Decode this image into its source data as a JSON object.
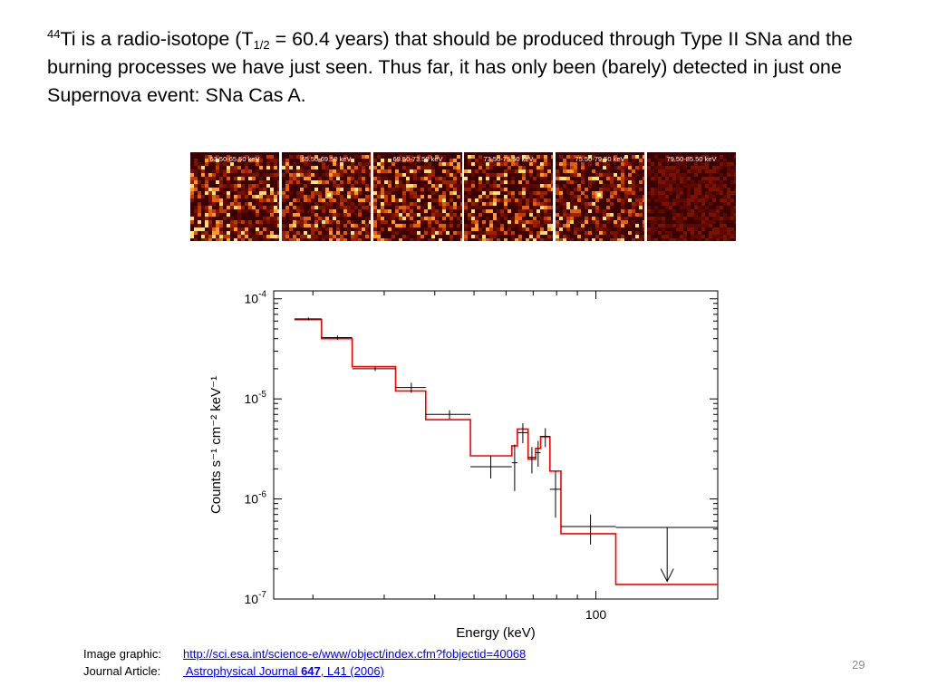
{
  "slide": {
    "para_sup": "44",
    "para_a": "Ti is a radio-isotope (T",
    "para_sub": "1/2",
    "para_b": " = 60.4 years) that should be produced through Type II SNa and the burning processes we have just seen.  Thus far, it has only been (barely) detected in just one Supernova event:  SNa Cas A."
  },
  "panels": [
    {
      "label": "63.50-65.50 keV"
    },
    {
      "label": "65.50-69.50 keV"
    },
    {
      "label": "69.50-73.50 keV"
    },
    {
      "label": "73.50-75.50 keV"
    },
    {
      "label": "75.50-79.50 keV"
    },
    {
      "label": "79.50-85.50 keV"
    }
  ],
  "colors": {
    "panel_background": "#3a0000",
    "model_line": "#ff0000",
    "data_line": "#000000",
    "page_number": "#8a8a8a",
    "link": "#0000ee"
  },
  "chart_data": {
    "type": "line",
    "xlabel": "Energy (keV)",
    "ylabel": "Counts s⁻¹ cm⁻² keV⁻¹",
    "x_scale": "log",
    "y_scale": "log",
    "xlim": [
      16,
      200
    ],
    "ylim": [
      1e-07,
      0.00012
    ],
    "y_ticks": [
      {
        "value": 0.0001,
        "label_base": "10",
        "label_exp": "-4"
      },
      {
        "value": 1e-05,
        "label_base": "10",
        "label_exp": "-5"
      },
      {
        "value": 1e-06,
        "label_base": "10",
        "label_exp": "-6"
      },
      {
        "value": 1e-07,
        "label_base": "10",
        "label_exp": "-7"
      }
    ],
    "x_ticks": [
      {
        "value": 100,
        "label": "100"
      }
    ],
    "series": [
      {
        "style": "step",
        "color": "#ff0000",
        "steps": [
          {
            "x0": 18,
            "x1": 21,
            "y": 6.2e-05
          },
          {
            "x0": 21,
            "x1": 25,
            "y": 4e-05
          },
          {
            "x0": 25,
            "x1": 32,
            "y": 2.1e-05
          },
          {
            "x0": 32,
            "x1": 38,
            "y": 1.2e-05
          },
          {
            "x0": 38,
            "x1": 49,
            "y": 6.2e-06
          },
          {
            "x0": 49,
            "x1": 62,
            "y": 2.7e-06
          },
          {
            "x0": 62,
            "x1": 64,
            "y": 3.4e-06
          },
          {
            "x0": 64,
            "x1": 68,
            "y": 5e-06
          },
          {
            "x0": 68,
            "x1": 71,
            "y": 2.5e-06
          },
          {
            "x0": 71,
            "x1": 73,
            "y": 3.2e-06
          },
          {
            "x0": 73,
            "x1": 77,
            "y": 4.2e-06
          },
          {
            "x0": 77,
            "x1": 82,
            "y": 1.9e-06
          },
          {
            "x0": 82,
            "x1": 112,
            "y": 4.5e-07
          },
          {
            "x0": 112,
            "x1": 200,
            "y": 1.4e-07
          }
        ]
      },
      {
        "style": "errorbar",
        "color": "#000000",
        "points": [
          {
            "x": 19.5,
            "xerr": [
              18,
              21
            ],
            "y": 6.3e-05,
            "yerr": [
              6.1e-05,
              6.5e-05
            ]
          },
          {
            "x": 23,
            "xerr": [
              21,
              25
            ],
            "y": 4.1e-05,
            "yerr": [
              3.9e-05,
              4.3e-05
            ]
          },
          {
            "x": 28.5,
            "xerr": [
              25,
              32
            ],
            "y": 2e-05,
            "yerr": [
              1.9e-05,
              2.1e-05
            ]
          },
          {
            "x": 35,
            "xerr": [
              32,
              38
            ],
            "y": 1.3e-05,
            "yerr": [
              1.15e-05,
              1.45e-05
            ]
          },
          {
            "x": 43.5,
            "xerr": [
              38,
              49
            ],
            "y": 7e-06,
            "yerr": [
              6.3e-06,
              7.7e-06
            ]
          },
          {
            "x": 55,
            "xerr": [
              49,
              62
            ],
            "y": 2.1e-06,
            "yerr": [
              1.6e-06,
              2.7e-06
            ]
          },
          {
            "x": 63,
            "xerr": [
              62,
              64
            ],
            "y": 2.3e-06,
            "yerr": [
              1.2e-06,
              3.5e-06
            ]
          },
          {
            "x": 66,
            "xerr": [
              64,
              68
            ],
            "y": 4.6e-06,
            "yerr": [
              3.6e-06,
              5.7e-06
            ]
          },
          {
            "x": 69.5,
            "xerr": [
              68,
              71
            ],
            "y": 2.6e-06,
            "yerr": [
              1.8e-06,
              3.3e-06
            ]
          },
          {
            "x": 72,
            "xerr": [
              71,
              73
            ],
            "y": 2.9e-06,
            "yerr": [
              2.1e-06,
              3.8e-06
            ]
          },
          {
            "x": 75,
            "xerr": [
              73,
              77
            ],
            "y": 4.2e-06,
            "yerr": [
              3.3e-06,
              5.1e-06
            ]
          },
          {
            "x": 79.5,
            "xerr": [
              77,
              82
            ],
            "y": 1.25e-06,
            "yerr": [
              6.5e-07,
              1.9e-06
            ]
          },
          {
            "x": 97,
            "xerr": [
              82,
              112
            ],
            "y": 5.3e-07,
            "yerr": [
              3.5e-07,
              7e-07
            ]
          }
        ],
        "upper_limit": {
          "x": 150,
          "xerr": [
            112,
            200
          ],
          "y": 5.2e-07,
          "arrow_to": 1.5e-07
        }
      }
    ]
  },
  "credits": {
    "image_label": "Image graphic:",
    "image_link": "http://sci.esa.int/science-e/www/object/index.cfm?fobjectid=40068",
    "article_label": "Journal Article:",
    "article_link_a": " Astrophysical Journal ",
    "article_link_b": "647",
    "article_link_c": ", L41 (2006)"
  },
  "page_number": "29"
}
